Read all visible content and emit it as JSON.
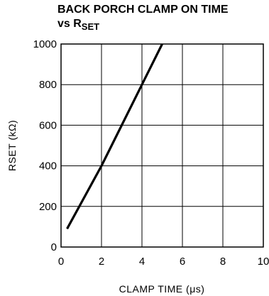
{
  "chart_data": {
    "type": "line",
    "title_line1": "BACK PORCH CLAMP ON TIME",
    "title_line2_prefix": "vs R",
    "title_line2_sub": "SET",
    "xlabel": "CLAMP TIME (μs)",
    "ylabel": "RSET (kΩ)",
    "xlim": [
      0,
      10
    ],
    "ylim": [
      0,
      1000
    ],
    "xticks": [
      "0",
      "2",
      "4",
      "6",
      "8",
      "10"
    ],
    "yticks": [
      "0",
      "200",
      "400",
      "600",
      "800",
      "1000"
    ],
    "grid": true,
    "series": [
      {
        "x": [
          0.3,
          2.0,
          4.0,
          5.0
        ],
        "y": [
          90,
          400,
          800,
          1000
        ]
      }
    ]
  }
}
